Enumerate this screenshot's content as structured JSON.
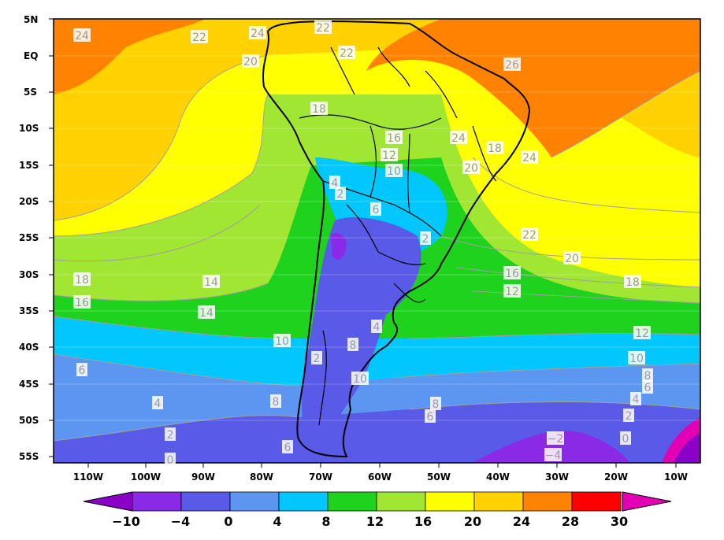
{
  "map": {
    "lat_labels": [
      "5N",
      "EQ",
      "5S",
      "10S",
      "15S",
      "20S",
      "25S",
      "30S",
      "35S",
      "40S",
      "45S",
      "50S",
      "55S"
    ],
    "lon_labels": [
      "110W",
      "100W",
      "90W",
      "80W",
      "70W",
      "60W",
      "50W",
      "40W",
      "30W",
      "20W",
      "10W"
    ]
  },
  "colorbar": {
    "ticks": [
      "−10",
      "−4",
      "0",
      "4",
      "8",
      "12",
      "16",
      "20",
      "24",
      "28",
      "30"
    ],
    "colors": [
      "#8a00c8",
      "#8b2ae6",
      "#5a5ae8",
      "#5c96f0",
      "#00c8ff",
      "#1ed21e",
      "#a0e632",
      "#ffff00",
      "#ffd200",
      "#ff8200",
      "#ff0000",
      "#e100b4"
    ]
  },
  "contour_labels": [
    {
      "text": "24"
    },
    {
      "text": "22"
    },
    {
      "text": "24"
    },
    {
      "text": "22"
    },
    {
      "text": "20"
    },
    {
      "text": "22"
    },
    {
      "text": "26"
    },
    {
      "text": "18"
    },
    {
      "text": "16"
    },
    {
      "text": "12"
    },
    {
      "text": "24"
    },
    {
      "text": "18"
    },
    {
      "text": "20"
    },
    {
      "text": "24"
    },
    {
      "text": "10"
    },
    {
      "text": "4"
    },
    {
      "text": "2"
    },
    {
      "text": "6"
    },
    {
      "text": "2"
    },
    {
      "text": "22"
    },
    {
      "text": "20"
    },
    {
      "text": "18"
    },
    {
      "text": "14"
    },
    {
      "text": "16"
    },
    {
      "text": "14"
    },
    {
      "text": "18"
    },
    {
      "text": "16"
    },
    {
      "text": "12"
    },
    {
      "text": "12"
    },
    {
      "text": "10"
    },
    {
      "text": "4"
    },
    {
      "text": "8"
    },
    {
      "text": "10"
    },
    {
      "text": "6"
    },
    {
      "text": "2"
    },
    {
      "text": "10"
    },
    {
      "text": "8"
    },
    {
      "text": "6"
    },
    {
      "text": "4"
    },
    {
      "text": "8"
    },
    {
      "text": "6"
    },
    {
      "text": "8"
    },
    {
      "text": "4"
    },
    {
      "text": "2"
    },
    {
      "text": "2"
    },
    {
      "text": "0"
    },
    {
      "text": "6"
    },
    {
      "text": "−2"
    },
    {
      "text": "−4"
    },
    {
      "text": "0"
    }
  ]
}
